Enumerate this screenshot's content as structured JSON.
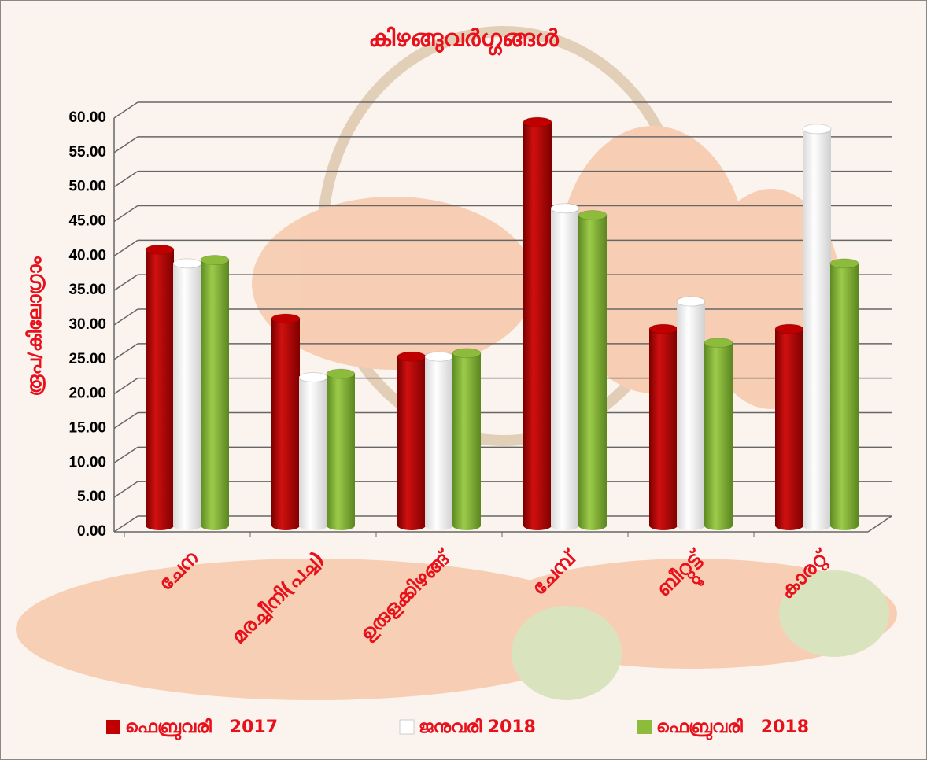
{
  "chart_data": {
    "type": "bar",
    "title": "കിഴങ്ങുവർഗ്ഗങ്ങൾ",
    "y_label": "രൂപ/കിലോഗ്രാം",
    "categories": [
      "ചേന",
      "മരച്ചീനി(പച്ച)",
      "ഉരുളക്കിഴങ്ങ്",
      "ചേമ്പ്",
      "ബീറ്റ്റൂട്ട്",
      "കാരറ്റ്"
    ],
    "series": [
      {
        "name": "ഫെബ്രുവരി   2017",
        "color": "#c00000",
        "values": [
          40,
          30,
          24.5,
          58.5,
          28.5,
          28.5
        ]
      },
      {
        "name": "ജനുവരി 2018",
        "color": "#ffffff",
        "values": [
          38,
          21.5,
          24.5,
          46,
          32.5,
          57.5
        ]
      },
      {
        "name": "ഫെബ്രുവരി   2018",
        "color": "#8dbb3c",
        "values": [
          38.5,
          22,
          25,
          45,
          26.5,
          38
        ]
      }
    ],
    "ylim": [
      0,
      60
    ],
    "yticks": [
      {
        "value": 0,
        "label": "0.00"
      },
      {
        "value": 5,
        "label": "5.00"
      },
      {
        "value": 10,
        "label": "10.00"
      },
      {
        "value": 15,
        "label": "15.00"
      },
      {
        "value": 20,
        "label": "20.00"
      },
      {
        "value": 25,
        "label": "25.00"
      },
      {
        "value": 30,
        "label": "30.00"
      },
      {
        "value": 35,
        "label": "35.00"
      },
      {
        "value": 40,
        "label": "40.00"
      },
      {
        "value": 45,
        "label": "45.00"
      },
      {
        "value": 50,
        "label": "50.00"
      },
      {
        "value": 55,
        "label": "55.00"
      },
      {
        "value": 60,
        "label": "60.00"
      }
    ],
    "grid": true,
    "legend": "bottom"
  }
}
